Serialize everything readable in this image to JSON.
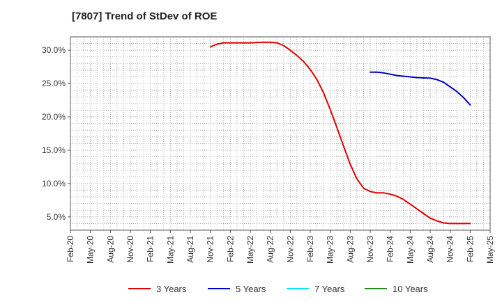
{
  "chart_data": {
    "type": "line",
    "title": "[7807]  Trend of StDev of ROE",
    "xlabel": "",
    "ylabel": "",
    "x_ticks": [
      "Feb-20",
      "May-20",
      "Aug-20",
      "Nov-20",
      "Feb-21",
      "May-21",
      "Aug-21",
      "Nov-21",
      "Feb-22",
      "May-22",
      "Aug-22",
      "Nov-22",
      "Feb-23",
      "May-23",
      "Aug-23",
      "Nov-23",
      "Feb-24",
      "May-24",
      "Aug-24",
      "Nov-24",
      "Feb-25",
      "May-25"
    ],
    "y_ticks": [
      "5.0%",
      "10.0%",
      "15.0%",
      "20.0%",
      "25.0%",
      "30.0%"
    ],
    "y_tick_values": [
      5,
      10,
      15,
      20,
      25,
      30
    ],
    "ylim": [
      3,
      32
    ],
    "xlim": [
      "Feb-20",
      "May-25"
    ],
    "grid": true,
    "legend_position": "bottom",
    "series": [
      {
        "name": "3 Years",
        "color": "#e00000",
        "x": [
          "Nov-21",
          "Dec-21",
          "Jan-22",
          "Feb-22",
          "Mar-22",
          "Apr-22",
          "May-22",
          "Jun-22",
          "Jul-22",
          "Aug-22",
          "Sep-22",
          "Oct-22",
          "Nov-22",
          "Dec-22",
          "Jan-23",
          "Feb-23",
          "Mar-23",
          "Apr-23",
          "May-23",
          "Jun-23",
          "Jul-23",
          "Aug-23",
          "Sep-23",
          "Oct-23",
          "Nov-23",
          "Dec-23",
          "Jan-24",
          "Feb-24",
          "Mar-24",
          "Apr-24",
          "May-24",
          "Jun-24",
          "Jul-24",
          "Aug-24",
          "Sep-24",
          "Oct-24",
          "Nov-24",
          "Dec-24",
          "Jan-25",
          "Feb-25"
        ],
        "values": [
          30.5,
          30.9,
          31.1,
          31.1,
          31.1,
          31.1,
          31.1,
          31.15,
          31.2,
          31.2,
          31.1,
          30.7,
          30.0,
          29.2,
          28.3,
          27.1,
          25.6,
          23.6,
          21.1,
          18.4,
          15.6,
          12.9,
          10.7,
          9.3,
          8.8,
          8.6,
          8.6,
          8.4,
          8.1,
          7.6,
          6.9,
          6.2,
          5.5,
          4.8,
          4.4,
          4.1,
          4.0,
          4.0,
          4.0,
          4.0
        ]
      },
      {
        "name": "5 Years",
        "color": "#0000cc",
        "x": [
          "Nov-23",
          "Dec-23",
          "Jan-24",
          "Feb-24",
          "Mar-24",
          "Apr-24",
          "May-24",
          "Jun-24",
          "Jul-24",
          "Aug-24",
          "Sep-24",
          "Oct-24",
          "Nov-24",
          "Dec-24",
          "Jan-25",
          "Feb-25"
        ],
        "values": [
          26.7,
          26.7,
          26.6,
          26.4,
          26.2,
          26.1,
          26.0,
          25.9,
          25.85,
          25.8,
          25.6,
          25.2,
          24.5,
          23.8,
          22.9,
          21.8
        ]
      },
      {
        "name": "7 Years",
        "color": "#00e5ee",
        "x": [],
        "values": []
      },
      {
        "name": "10 Years",
        "color": "#228b22",
        "x": [],
        "values": []
      }
    ]
  }
}
